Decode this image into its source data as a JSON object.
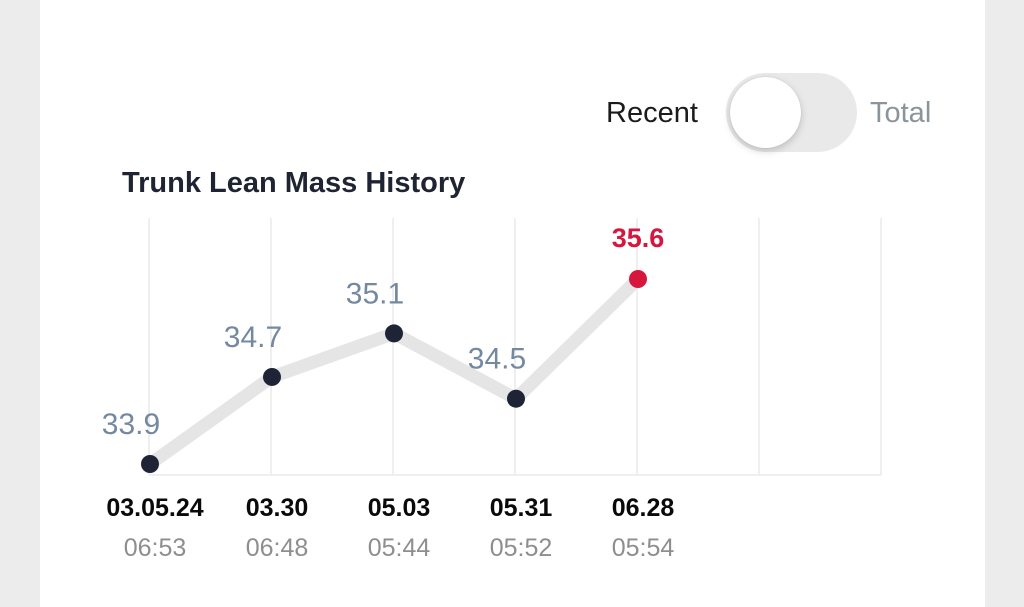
{
  "toggle": {
    "left_label": "Recent",
    "right_label": "Total",
    "state": "Recent"
  },
  "colors": {
    "point": "#1e2336",
    "highlight": "#d6163c",
    "line": "#e5e5e5",
    "grid": "#efefef",
    "value_label": "#7488a0",
    "date_label": "#0a0a0a",
    "time_label": "#8e8e8e"
  },
  "chart_data": {
    "type": "line",
    "title": "Trunk Lean Mass History",
    "xlabel": "",
    "ylabel": "",
    "grid": "vertical",
    "categories": [
      "03.05.24",
      "03.30",
      "05.03",
      "05.31",
      "06.28"
    ],
    "times": [
      "06:53",
      "06:48",
      "05:44",
      "05:52",
      "05:54"
    ],
    "series": [
      {
        "values": [
          33.9,
          34.7,
          35.1,
          34.5,
          35.6
        ]
      }
    ],
    "value_labels": [
      "33.9",
      "34.7",
      "35.1",
      "34.5",
      "35.6"
    ],
    "highlight_index": 4
  }
}
